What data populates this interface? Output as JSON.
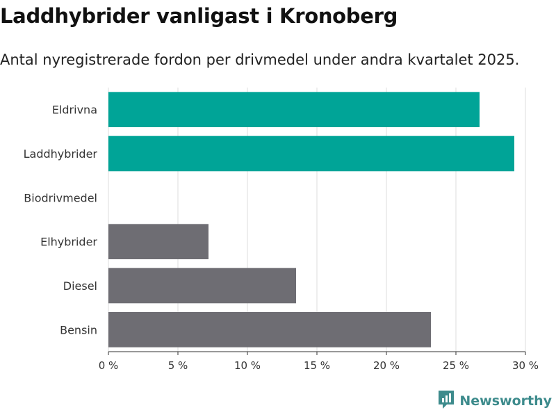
{
  "title": "Laddhybrider vanligast i Kronoberg",
  "subtitle": "Antal nyregistrerade fordon per drivmedel under andra kvartalet 2025.",
  "brand": "Newsworthy",
  "colors": {
    "highlight": "#00a497",
    "base": "#6e6d73",
    "grid": "#dddddd",
    "brand": "#3d8b8c"
  },
  "chart_data": {
    "type": "bar",
    "orientation": "horizontal",
    "categories": [
      "Eldrivna",
      "Laddhybrider",
      "Biodrivmedel",
      "Elhybrider",
      "Diesel",
      "Bensin"
    ],
    "values": [
      26.7,
      29.2,
      0,
      7.2,
      13.5,
      23.2
    ],
    "highlighted": [
      true,
      true,
      false,
      false,
      false,
      false
    ],
    "xlim": [
      0,
      30
    ],
    "xticks": [
      0,
      5,
      10,
      15,
      20,
      25,
      30
    ],
    "xtick_labels": [
      "0 %",
      "5 %",
      "10 %",
      "15 %",
      "20 %",
      "25 %",
      "30 %"
    ],
    "grid": true
  }
}
